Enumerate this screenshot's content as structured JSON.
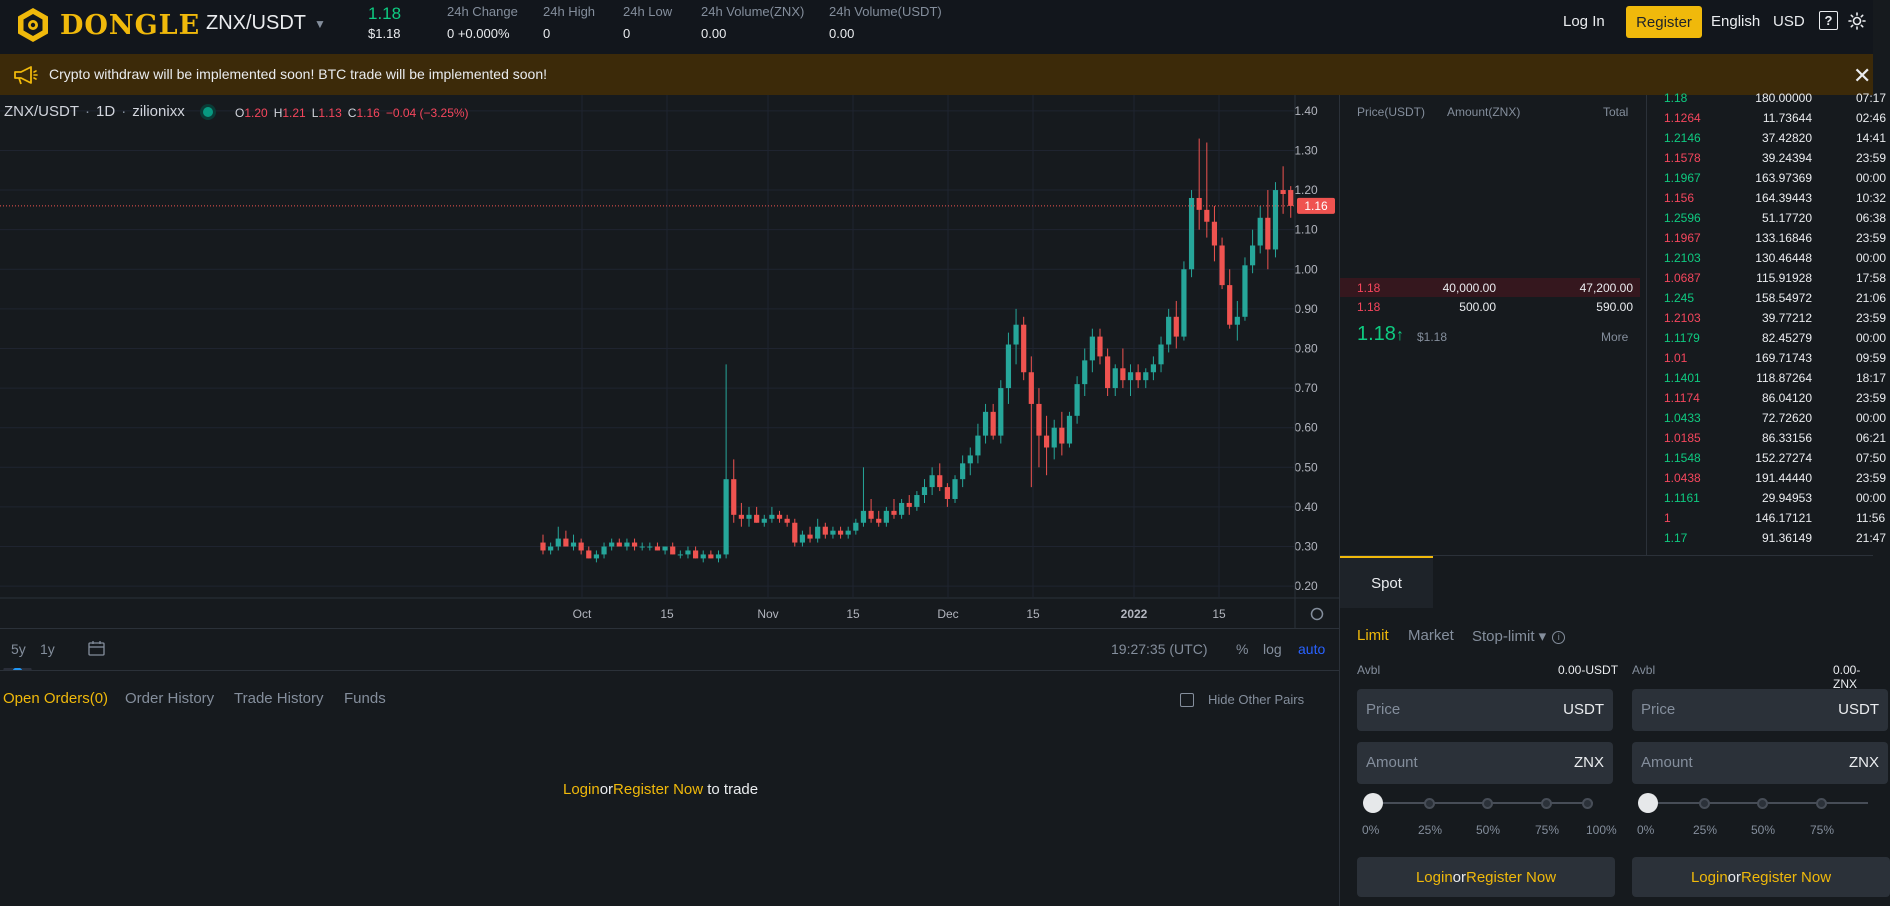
{
  "header": {
    "brand": "DONGLE",
    "pair": "ZNX/USDT",
    "last_price": "1.18",
    "last_price_usd": "$1.18",
    "stats": [
      {
        "label": "24h Change",
        "value": "0  +0.000%"
      },
      {
        "label": "24h High",
        "value": "0"
      },
      {
        "label": "24h Low",
        "value": "0"
      },
      {
        "label": "24h Volume(ZNX)",
        "value": "0.00"
      },
      {
        "label": "24h Volume(USDT)",
        "value": "0.00"
      }
    ],
    "login": "Log In",
    "register": "Register",
    "language": "English",
    "currency": "USD",
    "help_glyph": "?"
  },
  "banner": {
    "text": "Crypto withdraw will be implemented soon! BTC trade will be implemented soon!",
    "close": "✕"
  },
  "chart": {
    "symbol": "ZNX/USDT",
    "interval": "1D",
    "exchange": "zilionixx",
    "ohlc": {
      "o_label": "O",
      "o": "1.20",
      "h_label": "H",
      "h": "1.21",
      "l_label": "L",
      "l": "1.13",
      "c_label": "C",
      "c": "1.16",
      "change": "−0.04 (−3.25%)"
    },
    "price_axis": [
      "1.40",
      "1.30",
      "1.20",
      "1.10",
      "1.00",
      "0.90",
      "0.80",
      "0.70",
      "0.60",
      "0.50",
      "0.40",
      "0.30",
      "0.20"
    ],
    "last_label": "1.16",
    "time_axis": [
      "Oct",
      "15",
      "Nov",
      "15",
      "Dec",
      "15",
      "2022",
      "15"
    ],
    "ranges": [
      "5y",
      "1y"
    ],
    "clock": "19:27:35 (UTC)",
    "scale_opts": {
      "pct": "%",
      "log": "log",
      "auto": "auto"
    },
    "colors": {
      "up": "#26a69a",
      "down": "#ef5350"
    }
  },
  "chart_data": {
    "type": "candlestick",
    "title": "",
    "ylim": [
      0.17,
      1.44
    ],
    "x_labels": [
      "Oct",
      "15",
      "Nov",
      "15",
      "Dec",
      "15",
      "2022",
      "15"
    ],
    "candles": [
      [
        0.31,
        0.33,
        0.28,
        0.29
      ],
      [
        0.29,
        0.31,
        0.28,
        0.3
      ],
      [
        0.3,
        0.35,
        0.29,
        0.32
      ],
      [
        0.32,
        0.34,
        0.3,
        0.3
      ],
      [
        0.3,
        0.33,
        0.29,
        0.31
      ],
      [
        0.31,
        0.32,
        0.28,
        0.29
      ],
      [
        0.29,
        0.3,
        0.27,
        0.27
      ],
      [
        0.27,
        0.29,
        0.26,
        0.28
      ],
      [
        0.28,
        0.31,
        0.27,
        0.3
      ],
      [
        0.3,
        0.32,
        0.29,
        0.31
      ],
      [
        0.31,
        0.32,
        0.3,
        0.3
      ],
      [
        0.3,
        0.32,
        0.29,
        0.31
      ],
      [
        0.31,
        0.32,
        0.29,
        0.3
      ],
      [
        0.3,
        0.31,
        0.29,
        0.3
      ],
      [
        0.3,
        0.31,
        0.29,
        0.3
      ],
      [
        0.3,
        0.31,
        0.29,
        0.29
      ],
      [
        0.29,
        0.3,
        0.28,
        0.3
      ],
      [
        0.3,
        0.31,
        0.28,
        0.28
      ],
      [
        0.28,
        0.29,
        0.27,
        0.28
      ],
      [
        0.28,
        0.3,
        0.27,
        0.29
      ],
      [
        0.29,
        0.3,
        0.27,
        0.27
      ],
      [
        0.27,
        0.29,
        0.26,
        0.28
      ],
      [
        0.28,
        0.29,
        0.27,
        0.27
      ],
      [
        0.27,
        0.29,
        0.26,
        0.28
      ],
      [
        0.28,
        0.76,
        0.27,
        0.47
      ],
      [
        0.47,
        0.52,
        0.36,
        0.38
      ],
      [
        0.38,
        0.41,
        0.35,
        0.37
      ],
      [
        0.37,
        0.4,
        0.35,
        0.38
      ],
      [
        0.38,
        0.4,
        0.36,
        0.36
      ],
      [
        0.36,
        0.38,
        0.35,
        0.37
      ],
      [
        0.37,
        0.4,
        0.36,
        0.38
      ],
      [
        0.38,
        0.39,
        0.36,
        0.37
      ],
      [
        0.37,
        0.38,
        0.35,
        0.36
      ],
      [
        0.36,
        0.37,
        0.3,
        0.31
      ],
      [
        0.31,
        0.34,
        0.3,
        0.33
      ],
      [
        0.33,
        0.35,
        0.31,
        0.32
      ],
      [
        0.32,
        0.37,
        0.31,
        0.35
      ],
      [
        0.35,
        0.36,
        0.32,
        0.33
      ],
      [
        0.33,
        0.35,
        0.32,
        0.34
      ],
      [
        0.34,
        0.35,
        0.32,
        0.33
      ],
      [
        0.33,
        0.35,
        0.32,
        0.34
      ],
      [
        0.34,
        0.37,
        0.33,
        0.36
      ],
      [
        0.36,
        0.5,
        0.35,
        0.39
      ],
      [
        0.39,
        0.42,
        0.36,
        0.37
      ],
      [
        0.37,
        0.39,
        0.35,
        0.36
      ],
      [
        0.36,
        0.4,
        0.35,
        0.39
      ],
      [
        0.39,
        0.42,
        0.37,
        0.38
      ],
      [
        0.38,
        0.42,
        0.37,
        0.41
      ],
      [
        0.41,
        0.43,
        0.38,
        0.4
      ],
      [
        0.4,
        0.44,
        0.39,
        0.43
      ],
      [
        0.43,
        0.47,
        0.41,
        0.45
      ],
      [
        0.45,
        0.5,
        0.43,
        0.48
      ],
      [
        0.48,
        0.51,
        0.44,
        0.45
      ],
      [
        0.45,
        0.46,
        0.4,
        0.42
      ],
      [
        0.42,
        0.48,
        0.41,
        0.47
      ],
      [
        0.47,
        0.53,
        0.45,
        0.51
      ],
      [
        0.51,
        0.55,
        0.48,
        0.53
      ],
      [
        0.53,
        0.61,
        0.51,
        0.58
      ],
      [
        0.58,
        0.66,
        0.56,
        0.64
      ],
      [
        0.64,
        0.66,
        0.57,
        0.58
      ],
      [
        0.58,
        0.72,
        0.56,
        0.7
      ],
      [
        0.7,
        0.84,
        0.66,
        0.81
      ],
      [
        0.81,
        0.9,
        0.76,
        0.86
      ],
      [
        0.86,
        0.88,
        0.72,
        0.74
      ],
      [
        0.74,
        0.78,
        0.45,
        0.66
      ],
      [
        0.66,
        0.7,
        0.5,
        0.58
      ],
      [
        0.58,
        0.63,
        0.48,
        0.55
      ],
      [
        0.55,
        0.62,
        0.52,
        0.6
      ],
      [
        0.6,
        0.64,
        0.53,
        0.56
      ],
      [
        0.56,
        0.64,
        0.55,
        0.63
      ],
      [
        0.63,
        0.73,
        0.61,
        0.71
      ],
      [
        0.71,
        0.8,
        0.68,
        0.77
      ],
      [
        0.77,
        0.85,
        0.74,
        0.83
      ],
      [
        0.83,
        0.85,
        0.76,
        0.78
      ],
      [
        0.78,
        0.8,
        0.68,
        0.7
      ],
      [
        0.7,
        0.76,
        0.68,
        0.75
      ],
      [
        0.75,
        0.8,
        0.7,
        0.72
      ],
      [
        0.72,
        0.76,
        0.68,
        0.74
      ],
      [
        0.74,
        0.76,
        0.7,
        0.72
      ],
      [
        0.72,
        0.75,
        0.7,
        0.74
      ],
      [
        0.74,
        0.78,
        0.72,
        0.76
      ],
      [
        0.76,
        0.83,
        0.74,
        0.81
      ],
      [
        0.81,
        0.9,
        0.79,
        0.88
      ],
      [
        0.88,
        0.92,
        0.8,
        0.83
      ],
      [
        0.83,
        1.02,
        0.82,
        1.0
      ],
      [
        1.0,
        1.2,
        0.98,
        1.18
      ],
      [
        1.18,
        1.33,
        1.1,
        1.15
      ],
      [
        1.15,
        1.32,
        1.08,
        1.12
      ],
      [
        1.12,
        1.16,
        1.02,
        1.06
      ],
      [
        1.06,
        1.08,
        0.95,
        0.96
      ],
      [
        0.96,
        1.0,
        0.85,
        0.86
      ],
      [
        0.86,
        0.92,
        0.82,
        0.88
      ],
      [
        0.88,
        1.03,
        0.87,
        1.01
      ],
      [
        1.01,
        1.1,
        0.99,
        1.06
      ],
      [
        1.06,
        1.16,
        1.04,
        1.13
      ],
      [
        1.13,
        1.2,
        1.0,
        1.05
      ],
      [
        1.05,
        1.22,
        1.03,
        1.2
      ],
      [
        1.2,
        1.26,
        1.14,
        1.19
      ],
      [
        1.2,
        1.21,
        1.13,
        1.16
      ]
    ]
  },
  "orders": {
    "tabs": [
      "Open Orders(0)",
      "Order History",
      "Trade History",
      "Funds"
    ],
    "hide_pairs": "Hide Other Pairs",
    "login": "Login",
    "or": "or",
    "register": "Register Now",
    "suffix": "to trade"
  },
  "orderbook": {
    "headers": [
      "Price(USDT)",
      "Amount(ZNX)",
      "Total"
    ],
    "asks": [
      {
        "price": "1.18",
        "amount": "40,000.00",
        "total": "47,200.00"
      },
      {
        "price": "1.18",
        "amount": "500.00",
        "total": "590.00"
      }
    ],
    "mid_price": "1.18",
    "mid_arrow": "↑",
    "mid_usd": "$1.18",
    "more": "More"
  },
  "trades": [
    {
      "price": "1.18",
      "amount": "180.00000",
      "time": "07:17",
      "side": "up"
    },
    {
      "price": "1.1264",
      "amount": "11.73644",
      "time": "02:46",
      "side": "down"
    },
    {
      "price": "1.2146",
      "amount": "37.42820",
      "time": "14:41",
      "side": "up"
    },
    {
      "price": "1.1578",
      "amount": "39.24394",
      "time": "23:59",
      "side": "down"
    },
    {
      "price": "1.1967",
      "amount": "163.97369",
      "time": "00:00",
      "side": "up"
    },
    {
      "price": "1.156",
      "amount": "164.39443",
      "time": "10:32",
      "side": "down"
    },
    {
      "price": "1.2596",
      "amount": "51.17720",
      "time": "06:38",
      "side": "up"
    },
    {
      "price": "1.1967",
      "amount": "133.16846",
      "time": "23:59",
      "side": "down"
    },
    {
      "price": "1.2103",
      "amount": "130.46448",
      "time": "00:00",
      "side": "up"
    },
    {
      "price": "1.0687",
      "amount": "115.91928",
      "time": "17:58",
      "side": "down"
    },
    {
      "price": "1.245",
      "amount": "158.54972",
      "time": "21:06",
      "side": "up"
    },
    {
      "price": "1.2103",
      "amount": "39.77212",
      "time": "23:59",
      "side": "down"
    },
    {
      "price": "1.1179",
      "amount": "82.45279",
      "time": "00:00",
      "side": "up"
    },
    {
      "price": "1.01",
      "amount": "169.71743",
      "time": "09:59",
      "side": "down"
    },
    {
      "price": "1.1401",
      "amount": "118.87264",
      "time": "18:17",
      "side": "up"
    },
    {
      "price": "1.1174",
      "amount": "86.04120",
      "time": "23:59",
      "side": "down"
    },
    {
      "price": "1.0433",
      "amount": "72.72620",
      "time": "00:00",
      "side": "up"
    },
    {
      "price": "1.0185",
      "amount": "86.33156",
      "time": "06:21",
      "side": "down"
    },
    {
      "price": "1.1548",
      "amount": "152.27274",
      "time": "07:50",
      "side": "up"
    },
    {
      "price": "1.0438",
      "amount": "191.44440",
      "time": "23:59",
      "side": "down"
    },
    {
      "price": "1.1161",
      "amount": "29.94953",
      "time": "00:00",
      "side": "up"
    },
    {
      "price": "1",
      "amount": "146.17121",
      "time": "11:56",
      "side": "down"
    },
    {
      "price": "1.17",
      "amount": "91.36149",
      "time": "21:47",
      "side": "up"
    }
  ],
  "form": {
    "spot": "Spot",
    "types": {
      "limit": "Limit",
      "market": "Market",
      "stop": "Stop-limit ▾",
      "info": "i"
    },
    "buy": {
      "avbl_label": "Avbl",
      "avbl": "0.00-USDT",
      "price_ph": "Price",
      "price_unit": "USDT",
      "amount_ph": "Amount",
      "amount_unit": "ZNX"
    },
    "sell": {
      "avbl_label": "Avbl",
      "avbl": "0.00-ZNX",
      "price_ph": "Price",
      "price_unit": "USDT",
      "amount_ph": "Amount",
      "amount_unit": "ZNX"
    },
    "percents": [
      "0%",
      "25%",
      "50%",
      "75%",
      "100%"
    ],
    "login": "Login",
    "or": "or",
    "register": "Register Now"
  }
}
